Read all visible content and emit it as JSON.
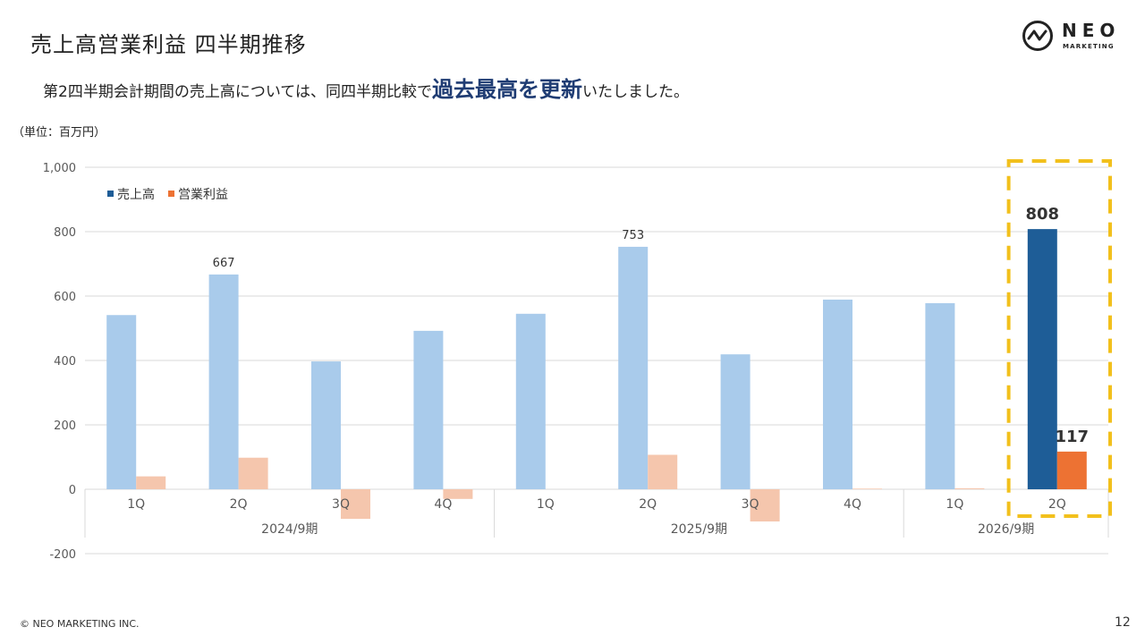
{
  "header": {
    "title": "売上高営業利益 四半期推移",
    "subtitle_pre": "第2四半期会計期間の売上高については、同四半期比較で",
    "subtitle_highlight": "過去最高を更新",
    "subtitle_post": "いたしました。"
  },
  "logo": {
    "word": "NEO",
    "sub": "MARKETING"
  },
  "unit_label": "（単位：百万円）",
  "footer": {
    "copyright": "© NEO MARKETING INC.",
    "page": "12"
  },
  "colors": {
    "sales_past": "#a9cbeb",
    "profit_past": "#f5c6ad",
    "sales_current": "#1e5d97",
    "profit_current": "#ed7233",
    "highlight_box": "#f2c01c",
    "subtitle_highlight": "#1f3c73"
  },
  "chart_data": {
    "type": "bar",
    "ylim": [
      -200,
      1000
    ],
    "yticks": [
      -200,
      0,
      200,
      400,
      600,
      800,
      1000
    ],
    "ytick_labels": [
      "-200",
      "0",
      "200",
      "400",
      "600",
      "800",
      "1,000"
    ],
    "grid": true,
    "legend_position": "top-left",
    "categories": [
      "1Q",
      "2Q",
      "3Q",
      "4Q",
      "1Q",
      "2Q",
      "3Q",
      "4Q",
      "1Q",
      "2Q"
    ],
    "groups": [
      {
        "label": "2024/9期",
        "count": 4
      },
      {
        "label": "2025/9期",
        "count": 4
      },
      {
        "label": "2026/9期",
        "count": 2
      }
    ],
    "series": [
      {
        "name": "売上高",
        "values": [
          541,
          667,
          397,
          492,
          545,
          753,
          419,
          589,
          578,
          808
        ]
      },
      {
        "name": "営業利益",
        "values": [
          40,
          98,
          -92,
          -30,
          0,
          107,
          -100,
          2,
          3,
          117
        ]
      }
    ],
    "data_labels": [
      {
        "series": 0,
        "index": 1,
        "text": "667",
        "emphasis": false
      },
      {
        "series": 0,
        "index": 5,
        "text": "753",
        "emphasis": false
      },
      {
        "series": 0,
        "index": 9,
        "text": "808",
        "emphasis": true
      },
      {
        "series": 1,
        "index": 9,
        "text": "117",
        "emphasis": true
      }
    ],
    "highlight_index": 9
  }
}
